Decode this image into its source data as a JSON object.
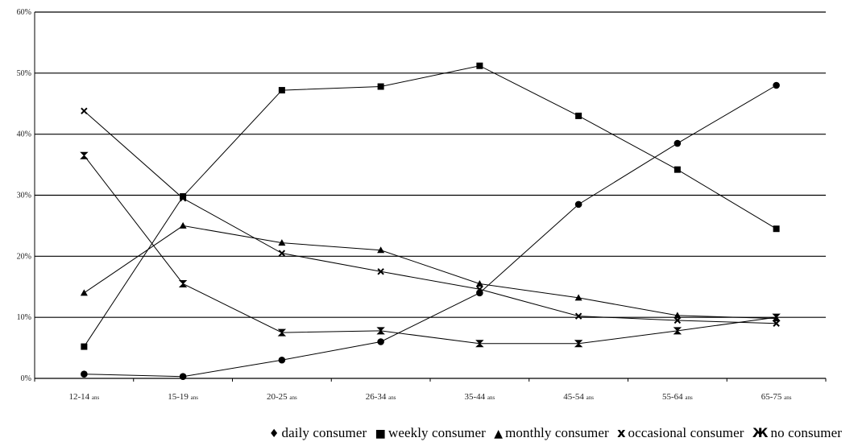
{
  "chart_data": {
    "type": "line",
    "categories": [
      "12-14",
      "15-19",
      "20-25",
      "26-34",
      "35-44",
      "45-54",
      "55-64",
      "65-75"
    ],
    "category_unit": "ans",
    "y_ticks": [
      "0%",
      "10%",
      "20%",
      "30%",
      "40%",
      "50%",
      "60%"
    ],
    "ylim": [
      0,
      60
    ],
    "grid": "horizontal",
    "legend_position": "bottom-right",
    "series": [
      {
        "name": "daily consumer",
        "legend_symbol": "♦",
        "marker": "diamond",
        "values": [
          0.7,
          0.3,
          3,
          6,
          14,
          28.5,
          38.5,
          48
        ]
      },
      {
        "name": "weekly consumer",
        "legend_symbol": "■",
        "marker": "square",
        "values": [
          5.2,
          29.8,
          47.2,
          47.8,
          51.2,
          43,
          34.2,
          24.5
        ]
      },
      {
        "name": "monthly consumer",
        "legend_symbol": "▲",
        "marker": "triangle",
        "values": [
          14,
          25,
          22.2,
          21,
          15.5,
          13.2,
          10.3,
          9.8
        ]
      },
      {
        "name": "occasional consumer",
        "legend_symbol": "x",
        "marker": "x",
        "values": [
          43.8,
          29.5,
          20.5,
          17.5,
          14.6,
          10.2,
          9.5,
          9
        ]
      },
      {
        "name": "no consumer",
        "legend_symbol": "Ж",
        "marker": "zhe",
        "values": [
          36.5,
          15.5,
          7.5,
          7.8,
          5.7,
          5.7,
          7.8,
          10
        ]
      }
    ]
  }
}
